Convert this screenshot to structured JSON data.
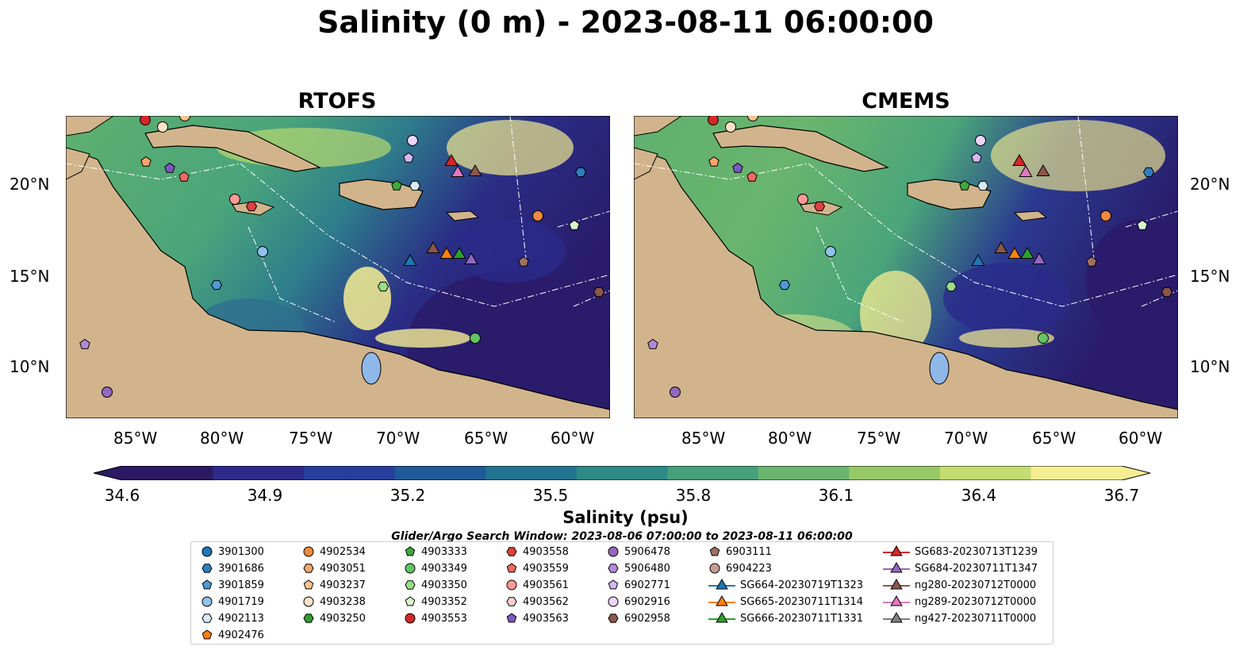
{
  "title": "Salinity (0 m) - 2023-08-11 06:00:00",
  "panels": [
    {
      "title": "RTOFS"
    },
    {
      "title": "CMEMS"
    }
  ],
  "axes": {
    "lat_labels": [
      "20°N",
      "15°N",
      "10°N"
    ],
    "lon_labels": [
      "85°W",
      "80°W",
      "75°W",
      "70°W",
      "65°W",
      "60°W"
    ]
  },
  "colorbar": {
    "label": "Salinity (psu)",
    "ticks": [
      "34.6",
      "34.9",
      "35.2",
      "35.5",
      "35.8",
      "36.1",
      "36.4",
      "36.7"
    ],
    "colors": [
      "#2a1a63",
      "#2e2a8c",
      "#263f9c",
      "#1f5a99",
      "#22738f",
      "#2d8a86",
      "#45a07c",
      "#6ab56e",
      "#96c866",
      "#c5dc70",
      "#f6ee93"
    ]
  },
  "search_window": "Glider/Argo Search Window: 2023-08-06 07:00:00 to 2023-08-11 06:00:00",
  "legend": [
    {
      "label": "3901300",
      "color": "#1f77b4",
      "shape": "circle"
    },
    {
      "label": "3901686",
      "color": "#2c7fc0",
      "shape": "hexagon"
    },
    {
      "label": "3901859",
      "color": "#4c9ad8",
      "shape": "pentagon"
    },
    {
      "label": "4901719",
      "color": "#8ec2ea",
      "shape": "circle"
    },
    {
      "label": "4902113",
      "color": "#d6eaf8",
      "shape": "hexagon"
    },
    {
      "label": "4902476",
      "color": "#ff7f0e",
      "shape": "pentagon"
    },
    {
      "label": "4902534",
      "color": "#f08a3e",
      "shape": "circle"
    },
    {
      "label": "4903051",
      "color": "#f7a46b",
      "shape": "hexagon"
    },
    {
      "label": "4903237",
      "color": "#fbc48f",
      "shape": "pentagon"
    },
    {
      "label": "4903238",
      "color": "#fde3c8",
      "shape": "circle"
    },
    {
      "label": "4903250",
      "color": "#2ca02c",
      "shape": "hexagon"
    },
    {
      "label": "4903333",
      "color": "#3daa3d",
      "shape": "pentagon"
    },
    {
      "label": "4903349",
      "color": "#62c462",
      "shape": "circle"
    },
    {
      "label": "4903350",
      "color": "#98df8a",
      "shape": "hexagon"
    },
    {
      "label": "4903352",
      "color": "#d8f5d0",
      "shape": "pentagon"
    },
    {
      "label": "4903553",
      "color": "#d62728",
      "shape": "circle"
    },
    {
      "label": "4903558",
      "color": "#e0403e",
      "shape": "hexagon"
    },
    {
      "label": "4903559",
      "color": "#f06860",
      "shape": "pentagon"
    },
    {
      "label": "4903561",
      "color": "#ff9896",
      "shape": "circle"
    },
    {
      "label": "4903562",
      "color": "#fdd0ce",
      "shape": "hexagon"
    },
    {
      "label": "4903563",
      "color": "#7e57c2",
      "shape": "pentagon"
    },
    {
      "label": "5906478",
      "color": "#9467bd",
      "shape": "circle"
    },
    {
      "label": "5906480",
      "color": "#b08ad6",
      "shape": "hexagon"
    },
    {
      "label": "6902771",
      "color": "#d5b6f0",
      "shape": "pentagon"
    },
    {
      "label": "6902916",
      "color": "#ecd4fa",
      "shape": "circle"
    },
    {
      "label": "6902958",
      "color": "#8c564b",
      "shape": "hexagon"
    },
    {
      "label": "6903111",
      "color": "#a0705f",
      "shape": "pentagon"
    },
    {
      "label": "6904223",
      "color": "#c49c94",
      "shape": "circle"
    },
    {
      "label": "SG664-20230719T1323",
      "color": "#1f77b4",
      "shape": "triangle"
    },
    {
      "label": "SG665-20230711T1314",
      "color": "#ff7f0e",
      "shape": "triangle"
    },
    {
      "label": "SG666-20230711T1331",
      "color": "#2ca02c",
      "shape": "triangle"
    },
    {
      "label": "SG683-20230713T1239",
      "color": "#d62728",
      "shape": "triangle"
    },
    {
      "label": "SG684-20230711T1347",
      "color": "#9467bd",
      "shape": "triangle"
    },
    {
      "label": "ng280-20230712T0000",
      "color": "#8c564b",
      "shape": "triangle"
    },
    {
      "label": "ng289-20230712T0000",
      "color": "#e377c2",
      "shape": "triangle"
    },
    {
      "label": "ng427-20230711T0000",
      "color": "#7f7f7f",
      "shape": "triangle"
    }
  ],
  "map_colors": {
    "land": "#d2b48c",
    "lake": "#8fb7e8",
    "river": "#9db8d4"
  }
}
